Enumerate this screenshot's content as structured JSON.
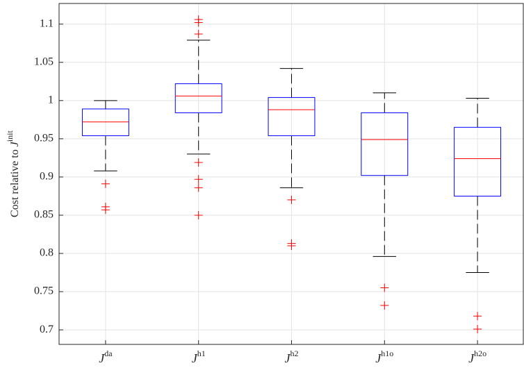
{
  "chart_data": {
    "type": "box",
    "y_label": {
      "text": "Cost relative to ",
      "symbol": "J",
      "sup": "init"
    },
    "categories": [
      {
        "symbol": "J",
        "sup": "da"
      },
      {
        "symbol": "J",
        "sup": "h1"
      },
      {
        "symbol": "J",
        "sup": "h2"
      },
      {
        "symbol": "J",
        "sup": "h1o"
      },
      {
        "symbol": "J",
        "sup": "h2o"
      }
    ],
    "boxes": [
      {
        "whisker_low": 0.908,
        "q1": 0.954,
        "median": 0.972,
        "q3": 0.989,
        "whisker_high": 1.0,
        "outliers": [
          0.891,
          0.861,
          0.857
        ]
      },
      {
        "whisker_low": 0.93,
        "q1": 0.984,
        "median": 1.006,
        "q3": 1.022,
        "whisker_high": 1.079,
        "outliers": [
          1.106,
          1.102,
          1.087,
          0.919,
          0.897,
          0.886,
          0.85
        ]
      },
      {
        "whisker_low": 0.886,
        "q1": 0.954,
        "median": 0.988,
        "q3": 1.004,
        "whisker_high": 1.042,
        "outliers": [
          0.87,
          0.813,
          0.81
        ]
      },
      {
        "whisker_low": 0.796,
        "q1": 0.902,
        "median": 0.949,
        "q3": 0.984,
        "whisker_high": 1.01,
        "outliers": [
          0.755,
          0.732
        ]
      },
      {
        "whisker_low": 0.775,
        "q1": 0.875,
        "median": 0.924,
        "q3": 0.965,
        "whisker_high": 1.003,
        "outliers": [
          0.718,
          0.701
        ]
      }
    ],
    "box_color": "#0000ff",
    "median_color": "#ff0000",
    "whisker_color": "#000000",
    "outlier_color": "#ff0000",
    "ylim": [
      0.681,
      1.127
    ],
    "yticks": [
      0.7,
      0.75,
      0.8,
      0.85,
      0.9,
      0.95,
      1,
      1.05,
      1.1
    ],
    "grid": true
  }
}
